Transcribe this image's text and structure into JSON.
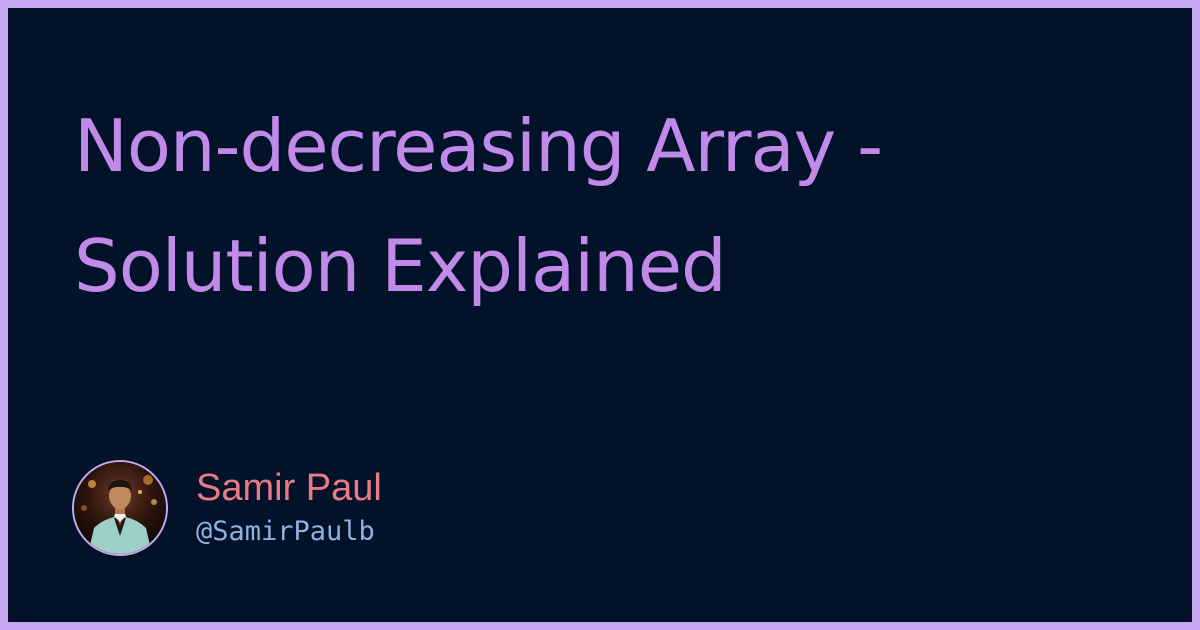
{
  "card": {
    "title": "Non-decreasing Array - Solution Explained",
    "author": {
      "name": "Samir Paul",
      "handle": "@SamirPaulb",
      "avatar_icon": "person-photo-avatar"
    }
  },
  "colors": {
    "background": "#021229",
    "border": "#c4a7f0",
    "title": "#c28ae8",
    "author_name": "#ea7a86",
    "author_handle": "#8fb2e0"
  }
}
